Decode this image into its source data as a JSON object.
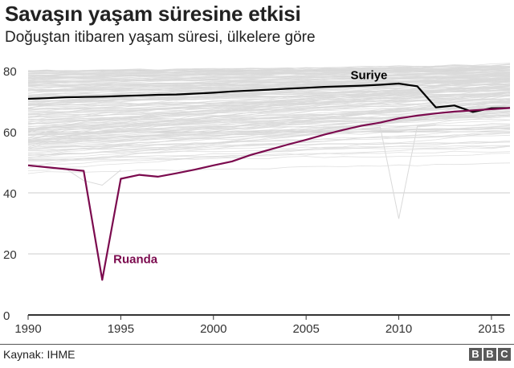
{
  "header": {
    "title": "Savaşın yaşam süresine etkisi",
    "subtitle": "Doğuştan itibaren yaşam süresi, ülkelere göre"
  },
  "footer": {
    "source": "Kaynak: IHME",
    "logo": [
      "B",
      "B",
      "C"
    ]
  },
  "colors": {
    "background_lines": "#d9d9d9",
    "syria": "#000000",
    "rwanda": "#7b0a4e",
    "gridline": "#cccccc",
    "axis": "#333333"
  },
  "chart_data": {
    "type": "line",
    "title": "Savaşın yaşam süresine etkisi",
    "subtitle": "Doğuştan itibaren yaşam süresi, ülkelere göre",
    "xlabel": "",
    "ylabel": "",
    "xlim": [
      1990,
      2016
    ],
    "ylim": [
      0,
      80
    ],
    "grid": true,
    "legend": "inline labels",
    "x_ticks": [
      1990,
      1995,
      2000,
      2005,
      2010,
      2015
    ],
    "y_ticks": [
      0,
      20,
      40,
      60,
      80
    ],
    "x": [
      1990,
      1991,
      1992,
      1993,
      1994,
      1995,
      1996,
      1997,
      1998,
      1999,
      2000,
      2001,
      2002,
      2003,
      2004,
      2005,
      2006,
      2007,
      2008,
      2009,
      2010,
      2011,
      2012,
      2013,
      2014,
      2015,
      2016
    ],
    "series": [
      {
        "name": "Suriye",
        "label": "Suriye",
        "highlight": true,
        "values": [
          70.8,
          71.0,
          71.3,
          71.4,
          71.5,
          71.7,
          71.9,
          72.1,
          72.2,
          72.5,
          72.8,
          73.2,
          73.5,
          73.8,
          74.1,
          74.4,
          74.7,
          74.9,
          75.1,
          75.4,
          75.8,
          74.9,
          68.0,
          68.6,
          66.5,
          67.7,
          67.8
        ]
      },
      {
        "name": "Ruanda",
        "label": "Ruanda",
        "highlight": true,
        "values": [
          49.0,
          48.4,
          47.8,
          47.2,
          11.5,
          44.6,
          45.9,
          45.3,
          46.4,
          47.6,
          49.0,
          50.3,
          52.4,
          54.1,
          55.8,
          57.4,
          59.1,
          60.6,
          62.0,
          63.0,
          64.4,
          65.3,
          66.0,
          66.6,
          67.0,
          67.4,
          67.8
        ]
      }
    ],
    "background_series_note": "~190 other countries drawn as thin light grey lines, mostly between 45 and 84; one grey line dips to ~31.5 in 2010",
    "background_series": {
      "count": 190,
      "start_range": [
        45,
        80
      ],
      "end_range": [
        50,
        84
      ],
      "outliers": [
        {
          "x": [
            2008,
            2009,
            2010,
            2011,
            2012
          ],
          "values": [
            61.0,
            61.5,
            31.5,
            61.8,
            62.2
          ]
        },
        {
          "x": [
            1992,
            1993,
            1994,
            1995
          ],
          "values": [
            48.0,
            44.0,
            42.5,
            47.5
          ]
        }
      ]
    },
    "annotations": [
      {
        "text": "Suriye",
        "x": 2007.4,
        "y": 77.2
      },
      {
        "text": "Ruanda",
        "x": 1994.6,
        "y": 17.0
      }
    ]
  }
}
